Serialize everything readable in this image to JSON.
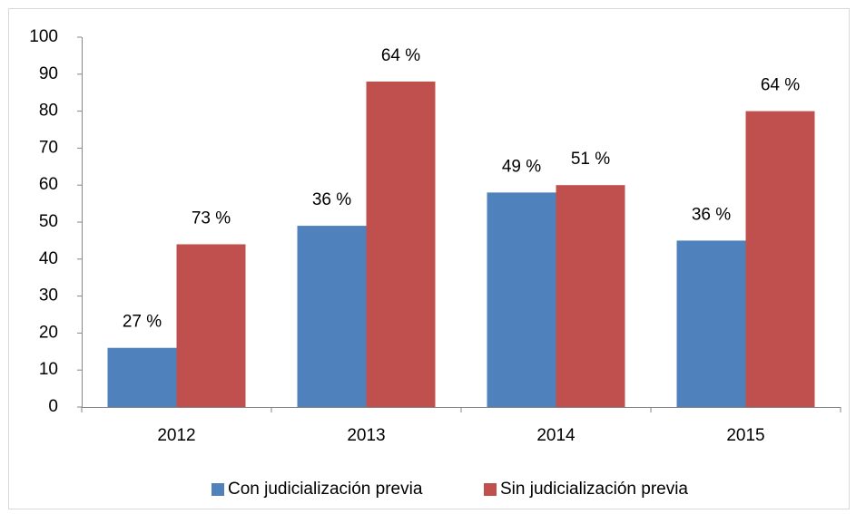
{
  "chart_data": {
    "type": "bar",
    "categories": [
      "2012",
      "2013",
      "2014",
      "2015"
    ],
    "series": [
      {
        "name": "Con judicialización previa",
        "color": "#4f81bd",
        "values": [
          16,
          49,
          58,
          45
        ],
        "data_labels": [
          "27 %",
          "36 %",
          "49 %",
          "36 %"
        ]
      },
      {
        "name": "Sin judicialización previa",
        "color": "#c0504d",
        "values": [
          44,
          88,
          60,
          80
        ],
        "data_labels": [
          "73 %",
          "64 %",
          "51 %",
          "64 %"
        ]
      }
    ],
    "ylim": [
      0,
      100
    ],
    "yticks": [
      0,
      10,
      20,
      30,
      40,
      50,
      60,
      70,
      80,
      90,
      100
    ],
    "grid": false,
    "legend": "bottom"
  }
}
